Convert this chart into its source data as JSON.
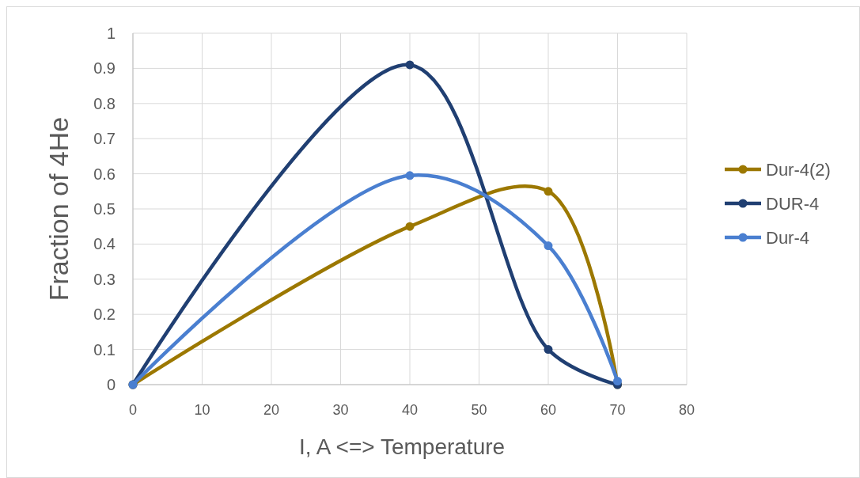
{
  "chart_data": {
    "type": "line",
    "xlabel": "I, A <=> Temperature",
    "ylabel": "Fraction of 4He",
    "x": [
      0,
      40,
      60,
      70
    ],
    "series": [
      {
        "name": "Dur-4(2)",
        "color": "#9c7800",
        "values": [
          0,
          0.45,
          0.55,
          0
        ]
      },
      {
        "name": "DUR-4",
        "color": "#203f72",
        "values": [
          0,
          0.91,
          0.1,
          0
        ]
      },
      {
        "name": "Dur-4",
        "color": "#4a7fd0",
        "values": [
          0,
          0.595,
          0.395,
          0.01
        ]
      }
    ],
    "xlim": [
      0,
      80
    ],
    "xticks": [
      0,
      10,
      20,
      30,
      40,
      50,
      60,
      70,
      80
    ],
    "ylim": [
      0,
      1
    ],
    "yticks": [
      0,
      0.1,
      0.2,
      0.3,
      0.4,
      0.5,
      0.6,
      0.7,
      0.8,
      0.9,
      1
    ],
    "grid": true,
    "legend": "right",
    "marker": "circle",
    "line_style": "solid"
  }
}
